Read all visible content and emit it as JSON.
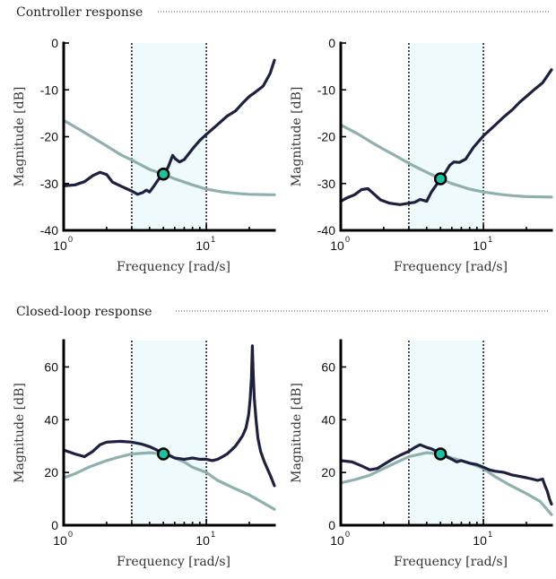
{
  "sections": [
    {
      "title": "Controller response"
    },
    {
      "title": "Closed-loop response"
    }
  ],
  "colors": {
    "series_dark": "#1f2040",
    "series_light": "#8fb0ac",
    "marker_fill": "#1bc3a0",
    "band_fill": "#effafd"
  },
  "chart_data": [
    {
      "type": "line",
      "xlabel": "Frequency [rad/s]",
      "ylabel": "Magnitude [dB]",
      "x_scale": "log",
      "xlim": [
        1,
        30
      ],
      "ylim": [
        -40,
        0
      ],
      "yticks": [
        -40,
        -30,
        -20,
        -10,
        0
      ],
      "ytick_labels": [
        "-40",
        "-30",
        "-20",
        "-10",
        "0"
      ],
      "xticks": [
        1,
        10
      ],
      "xtick_labels": [
        {
          "base": "10",
          "exp": "0"
        },
        {
          "base": "10",
          "exp": "1"
        }
      ],
      "band": [
        3,
        10
      ],
      "marker": {
        "x": 5,
        "y": -28
      },
      "series": [
        {
          "color_key": "series_light",
          "points": [
            [
              1,
              -16.5
            ],
            [
              1.3,
              -18.5
            ],
            [
              1.6,
              -20.2
            ],
            [
              2,
              -22
            ],
            [
              2.5,
              -23.8
            ],
            [
              3,
              -25
            ],
            [
              4,
              -27
            ],
            [
              5,
              -28
            ],
            [
              6,
              -29
            ],
            [
              8,
              -30.3
            ],
            [
              10,
              -31.2
            ],
            [
              13,
              -31.8
            ],
            [
              16,
              -32.1
            ],
            [
              20,
              -32.3
            ],
            [
              30,
              -32.4
            ]
          ]
        },
        {
          "color_key": "series_dark",
          "points": [
            [
              1,
              -30.5
            ],
            [
              1.2,
              -30.3
            ],
            [
              1.4,
              -29.6
            ],
            [
              1.6,
              -28.3
            ],
            [
              1.8,
              -27.6
            ],
            [
              2,
              -28.1
            ],
            [
              2.2,
              -29.7
            ],
            [
              2.5,
              -30.5
            ],
            [
              2.8,
              -31.2
            ],
            [
              3,
              -31.6
            ],
            [
              3.3,
              -32.3
            ],
            [
              3.6,
              -31.9
            ],
            [
              3.8,
              -31.4
            ],
            [
              4,
              -31.8
            ],
            [
              4.3,
              -30.5
            ],
            [
              4.6,
              -29.2
            ],
            [
              5,
              -28
            ],
            [
              5.4,
              -26.5
            ],
            [
              5.8,
              -24
            ],
            [
              6.1,
              -24.8
            ],
            [
              6.5,
              -25.4
            ],
            [
              7,
              -24.9
            ],
            [
              8,
              -22.6
            ],
            [
              9,
              -20.8
            ],
            [
              10,
              -19.5
            ],
            [
              12,
              -17.4
            ],
            [
              14,
              -15.6
            ],
            [
              16,
              -14.5
            ],
            [
              18,
              -12.8
            ],
            [
              20,
              -11.4
            ],
            [
              22,
              -10.5
            ],
            [
              25,
              -9.2
            ],
            [
              28,
              -6.5
            ],
            [
              30,
              -3.7
            ]
          ]
        }
      ]
    },
    {
      "type": "line",
      "xlabel": "Frequency [rad/s]",
      "ylabel": "Magnitude [dB]",
      "x_scale": "log",
      "xlim": [
        1,
        30
      ],
      "ylim": [
        -40,
        0
      ],
      "yticks": [
        -40,
        -30,
        -20,
        -10,
        0
      ],
      "ytick_labels": [
        "-40",
        "-30",
        "-20",
        "-10",
        "0"
      ],
      "xticks": [
        1,
        10
      ],
      "xtick_labels": [
        {
          "base": "10",
          "exp": "0"
        },
        {
          "base": "10",
          "exp": "1"
        }
      ],
      "band": [
        3,
        10
      ],
      "marker": {
        "x": 5,
        "y": -29
      },
      "series": [
        {
          "color_key": "series_light",
          "points": [
            [
              1,
              -17.5
            ],
            [
              1.3,
              -19.3
            ],
            [
              1.6,
              -21
            ],
            [
              2,
              -22.7
            ],
            [
              2.5,
              -24.3
            ],
            [
              3,
              -25.7
            ],
            [
              4,
              -27.6
            ],
            [
              5,
              -29
            ],
            [
              6,
              -30
            ],
            [
              8,
              -31.2
            ],
            [
              10,
              -31.8
            ],
            [
              13,
              -32.3
            ],
            [
              16,
              -32.6
            ],
            [
              20,
              -32.8
            ],
            [
              30,
              -32.9
            ]
          ]
        },
        {
          "color_key": "series_dark",
          "points": [
            [
              1,
              -33.8
            ],
            [
              1.1,
              -33.1
            ],
            [
              1.25,
              -32.4
            ],
            [
              1.4,
              -31.3
            ],
            [
              1.55,
              -31.1
            ],
            [
              1.7,
              -32.2
            ],
            [
              1.9,
              -33.5
            ],
            [
              2.2,
              -34.2
            ],
            [
              2.6,
              -34.5
            ],
            [
              3,
              -34.2
            ],
            [
              3.3,
              -34
            ],
            [
              3.6,
              -33.4
            ],
            [
              4,
              -33.8
            ],
            [
              4.3,
              -31.9
            ],
            [
              4.7,
              -30.2
            ],
            [
              5,
              -29
            ],
            [
              5.4,
              -27.7
            ],
            [
              5.8,
              -26.1
            ],
            [
              6.2,
              -25.4
            ],
            [
              6.8,
              -25.5
            ],
            [
              7.5,
              -24.8
            ],
            [
              8.5,
              -22.3
            ],
            [
              10,
              -19.8
            ],
            [
              12,
              -17.6
            ],
            [
              14,
              -15.7
            ],
            [
              16,
              -14.2
            ],
            [
              18,
              -12.6
            ],
            [
              20,
              -11.4
            ],
            [
              23,
              -9.8
            ],
            [
              26,
              -8.5
            ],
            [
              30,
              -5.7
            ]
          ]
        }
      ]
    },
    {
      "type": "line",
      "xlabel": "Frequency [rad/s]",
      "ylabel": "Magnitude [dB]",
      "x_scale": "log",
      "xlim": [
        1,
        30
      ],
      "ylim": [
        0,
        70
      ],
      "yticks": [
        0,
        20,
        40,
        60
      ],
      "ytick_labels": [
        "0",
        "20",
        "40",
        "60"
      ],
      "xticks": [
        1,
        10
      ],
      "xtick_labels": [
        {
          "base": "10",
          "exp": "0"
        },
        {
          "base": "10",
          "exp": "1"
        }
      ],
      "band": [
        3,
        10
      ],
      "marker": {
        "x": 5,
        "y": 27
      },
      "series": [
        {
          "color_key": "series_light",
          "points": [
            [
              1,
              18
            ],
            [
              1.2,
              19.5
            ],
            [
              1.5,
              22
            ],
            [
              2,
              24.5
            ],
            [
              2.5,
              26
            ],
            [
              3,
              27
            ],
            [
              4,
              27.5
            ],
            [
              5,
              27
            ],
            [
              6,
              25.5
            ],
            [
              7,
              24
            ],
            [
              8,
              22
            ],
            [
              10,
              20
            ],
            [
              12,
              17
            ],
            [
              15,
              14.5
            ],
            [
              20,
              11.5
            ],
            [
              25,
              8.5
            ],
            [
              30,
              6
            ]
          ]
        },
        {
          "color_key": "series_dark",
          "points": [
            [
              1,
              28.5
            ],
            [
              1.2,
              27
            ],
            [
              1.4,
              26
            ],
            [
              1.6,
              28
            ],
            [
              1.8,
              30.5
            ],
            [
              2,
              31.5
            ],
            [
              2.5,
              31.8
            ],
            [
              3,
              31.5
            ],
            [
              3.5,
              30.8
            ],
            [
              4,
              29.8
            ],
            [
              4.5,
              28.5
            ],
            [
              5,
              27
            ],
            [
              5.5,
              26.5
            ],
            [
              6,
              25.5
            ],
            [
              7,
              25
            ],
            [
              8,
              25.5
            ],
            [
              9,
              25
            ],
            [
              10,
              25
            ],
            [
              11,
              24.5
            ],
            [
              12,
              25
            ],
            [
              13,
              26
            ],
            [
              14,
              27
            ],
            [
              15,
              28.5
            ],
            [
              16,
              30
            ],
            [
              17,
              32
            ],
            [
              18,
              34
            ],
            [
              19,
              37
            ],
            [
              19.8,
              42
            ],
            [
              20.3,
              48
            ],
            [
              20.7,
              56
            ],
            [
              21,
              68
            ],
            [
              21.3,
              58
            ],
            [
              21.7,
              48
            ],
            [
              22.3,
              40
            ],
            [
              23,
              33
            ],
            [
              24,
              28
            ],
            [
              25.5,
              24
            ],
            [
              27,
              21
            ],
            [
              28.5,
              18
            ],
            [
              30,
              15
            ]
          ]
        }
      ]
    },
    {
      "type": "line",
      "xlabel": "Frequency [rad/s]",
      "ylabel": "Magnitude [dB]",
      "x_scale": "log",
      "xlim": [
        1,
        30
      ],
      "ylim": [
        0,
        70
      ],
      "yticks": [
        0,
        20,
        40,
        60
      ],
      "ytick_labels": [
        "0",
        "20",
        "40",
        "60"
      ],
      "xticks": [
        1,
        10
      ],
      "xtick_labels": [
        {
          "base": "10",
          "exp": "0"
        },
        {
          "base": "10",
          "exp": "1"
        }
      ],
      "band": [
        3,
        10
      ],
      "marker": {
        "x": 5,
        "y": 27
      },
      "series": [
        {
          "color_key": "series_light",
          "points": [
            [
              1,
              16
            ],
            [
              1.3,
              17.5
            ],
            [
              1.6,
              19
            ],
            [
              2,
              21.5
            ],
            [
              2.5,
              24
            ],
            [
              3,
              26
            ],
            [
              4,
              27.5
            ],
            [
              5,
              27
            ],
            [
              6,
              25.5
            ],
            [
              7,
              24.5
            ],
            [
              8,
              23.5
            ],
            [
              10,
              21.5
            ],
            [
              12,
              18.5
            ],
            [
              15,
              15.5
            ],
            [
              20,
              12
            ],
            [
              25,
              9
            ],
            [
              30,
              4
            ]
          ]
        },
        {
          "color_key": "series_dark",
          "points": [
            [
              1,
              24.5
            ],
            [
              1.2,
              24
            ],
            [
              1.4,
              22.5
            ],
            [
              1.6,
              21
            ],
            [
              1.8,
              21.5
            ],
            [
              2,
              23
            ],
            [
              2.3,
              25
            ],
            [
              2.6,
              26.5
            ],
            [
              3,
              28
            ],
            [
              3.3,
              29.5
            ],
            [
              3.6,
              30.5
            ],
            [
              4,
              29.5
            ],
            [
              4.3,
              29
            ],
            [
              4.7,
              28
            ],
            [
              5,
              27
            ],
            [
              5.5,
              26
            ],
            [
              6,
              25
            ],
            [
              6.5,
              24
            ],
            [
              7,
              24.5
            ],
            [
              8,
              23.5
            ],
            [
              9,
              23
            ],
            [
              10,
              22
            ],
            [
              11,
              21
            ],
            [
              12,
              20.5
            ],
            [
              14,
              20
            ],
            [
              16,
              19
            ],
            [
              18,
              18.5
            ],
            [
              20,
              18
            ],
            [
              22,
              17.5
            ],
            [
              24,
              17
            ],
            [
              26,
              17.5
            ],
            [
              27,
              15
            ],
            [
              28,
              13
            ],
            [
              29,
              10
            ],
            [
              30,
              8
            ]
          ]
        }
      ]
    }
  ]
}
